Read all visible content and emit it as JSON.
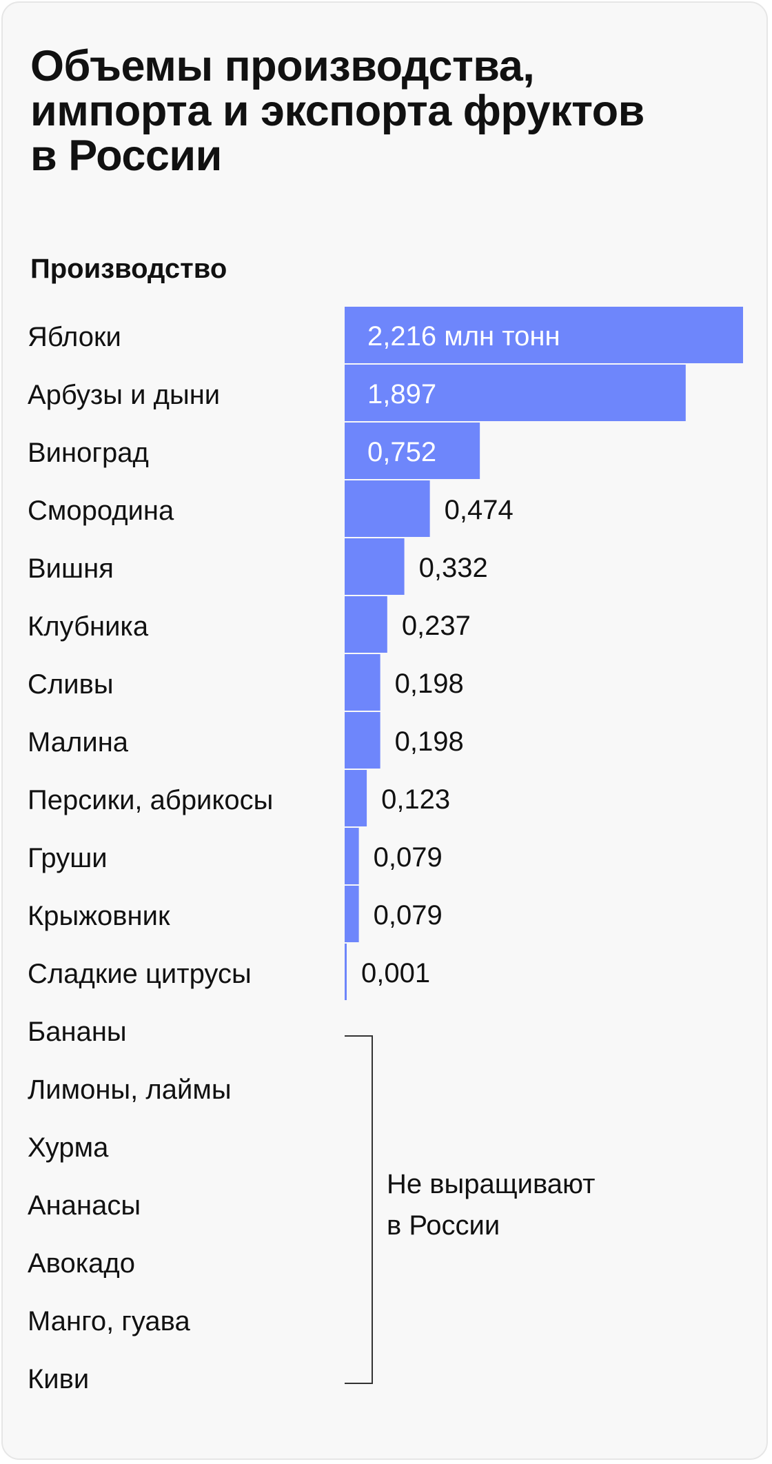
{
  "title_lines": [
    "Объемы производства,",
    "импорта и экспорта фруктов",
    "в России"
  ],
  "section_title": "Производство",
  "colors": {
    "bar": "#6e86fb",
    "bar_label_inside": "#ffffff",
    "bar_label_outside": "#111111",
    "background": "#f8f8f8",
    "bracket": "#333333"
  },
  "chart_data": {
    "type": "bar",
    "orientation": "horizontal",
    "title": "Объемы производства, импорта и экспорта фруктов в России",
    "subtitle": "Производство",
    "categories": [
      "Яблоки",
      "Арбузы и дыни",
      "Виноград",
      "Смородина",
      "Вишня",
      "Клубника",
      "Сливы",
      "Малина",
      "Персики, абрикосы",
      "Груши",
      "Крыжовник",
      "Сладкие цитрусы"
    ],
    "values": [
      2.216,
      1.897,
      0.752,
      0.474,
      0.332,
      0.237,
      0.198,
      0.198,
      0.123,
      0.079,
      0.079,
      0.001
    ],
    "value_labels": [
      "2,216 млн тонн",
      "1,897",
      "0,752",
      "0,474",
      "0,332",
      "0,237",
      "0,198",
      "0,198",
      "0,123",
      "0,079",
      "0,079",
      "0,001"
    ],
    "unit": "млн тонн",
    "xlim": [
      0,
      2.216
    ],
    "grid": false,
    "not_grown": {
      "categories": [
        "Бананы",
        "Лимоны, лаймы",
        "Хурма",
        "Ананасы",
        "Авокадо",
        "Манго, гуава",
        "Киви"
      ],
      "note_lines": [
        "Не выращивают",
        "в России"
      ]
    }
  }
}
